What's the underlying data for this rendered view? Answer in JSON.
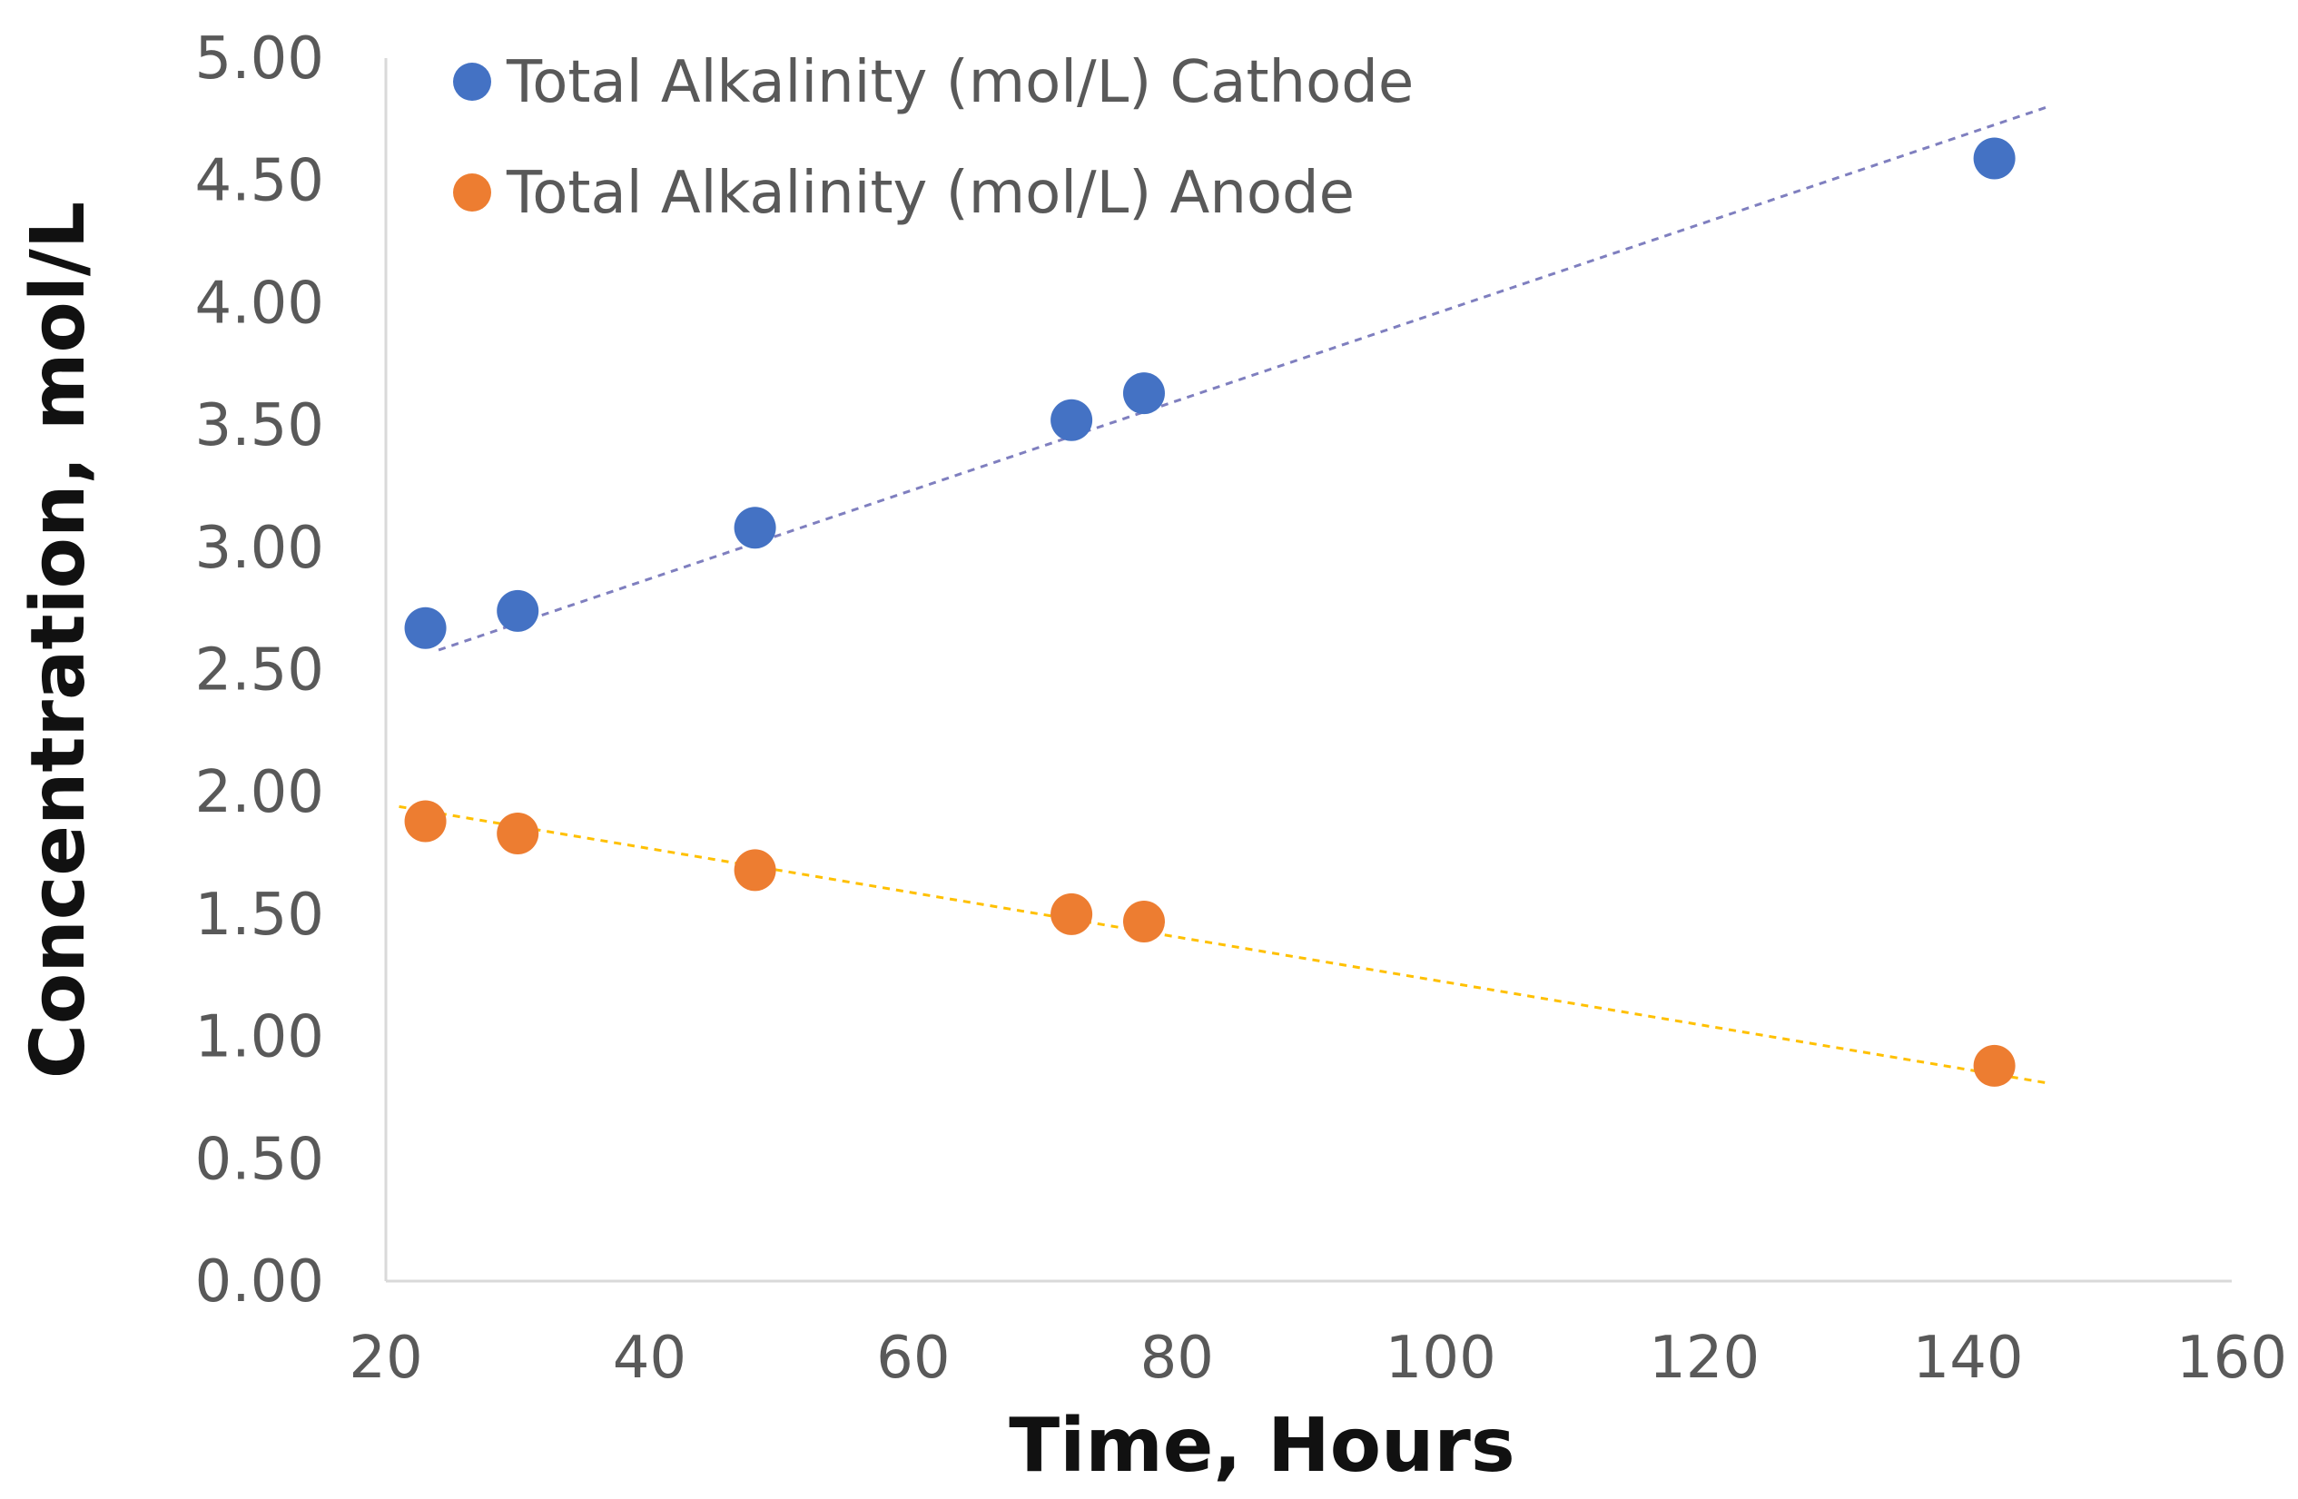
{
  "chart_data": {
    "type": "scatter",
    "title": "",
    "xlabel": "Time, Hours",
    "ylabel": "Concentration, mol/L",
    "xlim": [
      20,
      160
    ],
    "ylim": [
      0,
      5
    ],
    "x_ticks": [
      "20",
      "40",
      "60",
      "80",
      "100",
      "120",
      "140",
      "160"
    ],
    "x_tick_values": [
      20,
      40,
      60,
      80,
      100,
      120,
      140,
      160
    ],
    "y_ticks": [
      "0.00",
      "0.50",
      "1.00",
      "1.50",
      "2.00",
      "2.50",
      "3.00",
      "3.50",
      "4.00",
      "4.50",
      "5.00"
    ],
    "y_tick_values": [
      0,
      0.5,
      1,
      1.5,
      2,
      2.5,
      3,
      3.5,
      4,
      4.5,
      5
    ],
    "grid": false,
    "legend_position": "top-left",
    "series": [
      {
        "name": "Total Alkalinity (mol/L) Cathode",
        "color": "#4472C4",
        "x": [
          23,
          30,
          48,
          72,
          77.5,
          142
        ],
        "y": [
          2.67,
          2.74,
          3.08,
          3.52,
          3.63,
          4.59
        ],
        "trendline": {
          "color": "#7F7FBF",
          "x": [
            24,
            146
          ],
          "y": [
            2.58,
            4.8
          ]
        }
      },
      {
        "name": "Total Alkalinity (mol/L) Anode",
        "color": "#ED7D31",
        "x": [
          23,
          30,
          48,
          72,
          77.5,
          142
        ],
        "y": [
          1.88,
          1.83,
          1.68,
          1.5,
          1.47,
          0.88
        ],
        "trendline": {
          "color": "#FFC000",
          "x": [
            21,
            146
          ],
          "y": [
            1.94,
            0.81
          ]
        }
      }
    ]
  }
}
